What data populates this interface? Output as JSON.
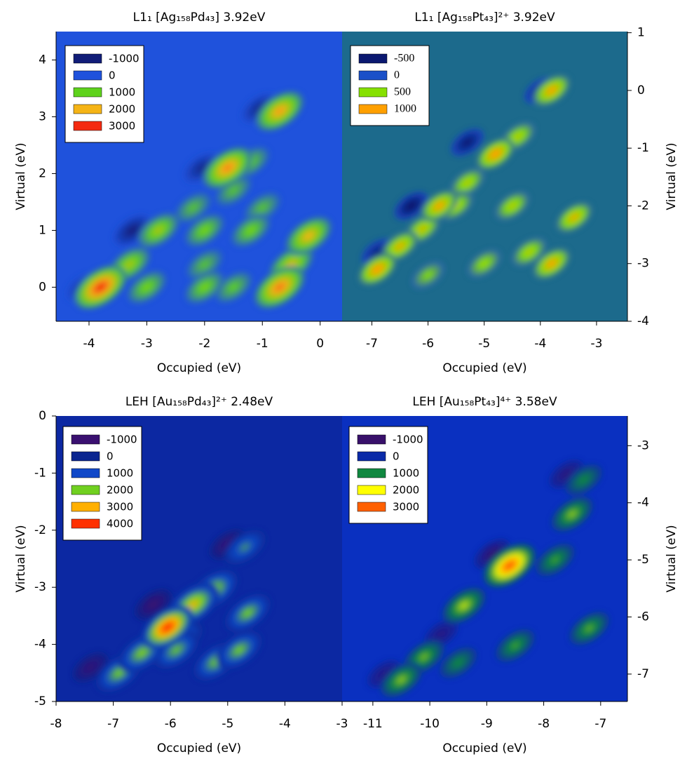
{
  "chart_data": [
    {
      "type": "contour",
      "title": "L1₁ [Ag₁₅₈Pd₄₃] 3.92eV",
      "xlabel": "Occupied (eV)",
      "ylabel": "Virtual (eV)",
      "xlim": [
        -4.57,
        0.38
      ],
      "ylim": [
        -0.6,
        4.5
      ],
      "xticks": [
        -4,
        -3,
        -2,
        -1,
        0
      ],
      "yticks": [
        0,
        1,
        2,
        3,
        4
      ],
      "y_axis_side": "left",
      "background_color": "#1f52dc",
      "levels": [
        {
          "value": -1000,
          "color": "#111d78"
        },
        {
          "value": 0,
          "color": "#1f52dc"
        },
        {
          "value": 1000,
          "color": "#5ed21c"
        },
        {
          "value": 2000,
          "color": "#f5b416"
        },
        {
          "value": 3000,
          "color": "#f42a10"
        }
      ],
      "points": [
        {
          "x": -3.8,
          "y": 0,
          "value": 3000
        },
        {
          "x": -0.7,
          "y": 0,
          "value": 2500
        },
        {
          "x": -3,
          "y": 0,
          "value": 1200
        },
        {
          "x": -2,
          "y": 0,
          "value": 1200
        },
        {
          "x": -1.5,
          "y": 0,
          "value": 1000
        },
        {
          "x": -3.3,
          "y": 0.4,
          "value": 1500
        },
        {
          "x": -0.5,
          "y": 0.4,
          "value": 1800
        },
        {
          "x": -2,
          "y": 0.4,
          "value": 900
        },
        {
          "x": -0.2,
          "y": 0.9,
          "value": 2000
        },
        {
          "x": -2.8,
          "y": 1,
          "value": 1500
        },
        {
          "x": -2,
          "y": 1,
          "value": 1200
        },
        {
          "x": -1.2,
          "y": 1,
          "value": 1200
        },
        {
          "x": -2.2,
          "y": 1.4,
          "value": 900
        },
        {
          "x": -1,
          "y": 1.4,
          "value": 900
        },
        {
          "x": -1.5,
          "y": 1.7,
          "value": 900
        },
        {
          "x": -1.6,
          "y": 2.1,
          "value": 2400
        },
        {
          "x": -1.2,
          "y": 2.2,
          "value": 1000
        },
        {
          "x": -0.7,
          "y": 3.1,
          "value": 2200
        },
        {
          "x": -3.25,
          "y": 1,
          "value": -1000
        },
        {
          "x": -4.1,
          "y": 0,
          "value": -600
        },
        {
          "x": -2.05,
          "y": 2.1,
          "value": -800
        },
        {
          "x": -1.05,
          "y": 3.15,
          "value": -800
        }
      ]
    },
    {
      "type": "contour",
      "title": "L1₁ [Ag₁₅₈Pt₄₃]²⁺ 3.92eV",
      "xlabel": "Occupied (eV)",
      "ylabel": "Virtual (eV)",
      "xlim": [
        -7.53,
        -2.45
      ],
      "ylim": [
        -4,
        1.02
      ],
      "xticks": [
        -7,
        -6,
        -5,
        -4,
        -3
      ],
      "yticks": [
        -4,
        -3,
        -2,
        -1,
        0,
        1
      ],
      "y_axis_side": "right",
      "background_color": "#1c6a8c",
      "levels": [
        {
          "value": -500,
          "color": "#0a1870"
        },
        {
          "value": 0,
          "color": "#1a50c8"
        },
        {
          "value": 500,
          "color": "#86e000"
        },
        {
          "value": 1000,
          "color": "#ffa000"
        }
      ],
      "points": [
        {
          "x": -6.9,
          "y": -3.1,
          "value": 1100
        },
        {
          "x": -6.5,
          "y": -2.7,
          "value": 900
        },
        {
          "x": -6.1,
          "y": -2.4,
          "value": 800
        },
        {
          "x": -5.8,
          "y": -2,
          "value": 1000
        },
        {
          "x": -5.3,
          "y": -1.6,
          "value": 700
        },
        {
          "x": -4.8,
          "y": -1.1,
          "value": 1100
        },
        {
          "x": -4.4,
          "y": -0.8,
          "value": 700
        },
        {
          "x": -3.8,
          "y": 0,
          "value": 1000
        },
        {
          "x": -3.4,
          "y": -2.2,
          "value": 900
        },
        {
          "x": -3.8,
          "y": -3,
          "value": 1000
        },
        {
          "x": -5.5,
          "y": -2,
          "value": 700
        },
        {
          "x": -4.5,
          "y": -2,
          "value": 700
        },
        {
          "x": -5,
          "y": -3,
          "value": 600
        },
        {
          "x": -6,
          "y": -3.2,
          "value": 500
        },
        {
          "x": -4.2,
          "y": -2.8,
          "value": 700
        },
        {
          "x": -6.3,
          "y": -2,
          "value": -600
        },
        {
          "x": -5.3,
          "y": -0.9,
          "value": -500
        },
        {
          "x": -4,
          "y": 0,
          "value": -400
        },
        {
          "x": -6.9,
          "y": -2.8,
          "value": -400
        }
      ]
    },
    {
      "type": "contour",
      "title": "LEH [Au₁₅₈Pd₄₃]²⁺ 2.48eV",
      "xlabel": "Occupied (eV)",
      "ylabel": "Virtual (eV)",
      "xlim": [
        -8,
        -3
      ],
      "ylim": [
        -5,
        0
      ],
      "xticks": [
        -8,
        -7,
        -6,
        -5,
        -4,
        -3
      ],
      "yticks": [
        -5,
        -4,
        -3,
        -2,
        -1,
        0
      ],
      "y_axis_side": "left",
      "background_color": "#0c28a2",
      "levels": [
        {
          "value": -1000,
          "color": "#3a1070"
        },
        {
          "value": 0,
          "color": "#0a2590"
        },
        {
          "value": 1000,
          "color": "#1048c8"
        },
        {
          "value": 2000,
          "color": "#70d020"
        },
        {
          "value": 3000,
          "color": "#ffb000"
        },
        {
          "value": 4000,
          "color": "#ff3000"
        }
      ],
      "points": [
        {
          "x": -6.05,
          "y": -3.7,
          "value": 4200
        },
        {
          "x": -5.6,
          "y": -3.3,
          "value": 2800
        },
        {
          "x": -5.25,
          "y": -3.05,
          "value": 2300
        },
        {
          "x": -6.5,
          "y": -4.15,
          "value": 2100
        },
        {
          "x": -5.9,
          "y": -4.1,
          "value": 1900
        },
        {
          "x": -5.2,
          "y": -4.3,
          "value": 2000
        },
        {
          "x": -6.9,
          "y": -4.5,
          "value": 2000
        },
        {
          "x": -4.65,
          "y": -3.45,
          "value": 2000
        },
        {
          "x": -4.7,
          "y": -2.3,
          "value": 1500
        },
        {
          "x": -4.8,
          "y": -4.1,
          "value": 2000
        },
        {
          "x": -5.8,
          "y": -3.9,
          "value": 1500
        },
        {
          "x": -6.3,
          "y": -3.3,
          "value": -1000
        },
        {
          "x": -5,
          "y": -2.25,
          "value": -900
        },
        {
          "x": -7.4,
          "y": -4.4,
          "value": -800
        }
      ]
    },
    {
      "type": "contour",
      "title": "LEH [Au₁₅₈Pt₄₃]⁴⁺ 3.58eV",
      "xlabel": "Occupied (eV)",
      "ylabel": "Virtual (eV)",
      "xlim": [
        -11.54,
        -6.53
      ],
      "ylim": [
        -7.48,
        -2.48
      ],
      "xticks": [
        -11,
        -10,
        -9,
        -8,
        -7
      ],
      "yticks": [
        -7,
        -6,
        -5,
        -4,
        -3
      ],
      "y_axis_side": "right",
      "background_color": "#0a30c0",
      "levels": [
        {
          "value": -1000,
          "color": "#38106a"
        },
        {
          "value": 0,
          "color": "#0a2aa8"
        },
        {
          "value": 1000,
          "color": "#108840"
        },
        {
          "value": 2000,
          "color": "#ffff00"
        },
        {
          "value": 3000,
          "color": "#ff6000"
        }
      ],
      "points": [
        {
          "x": -8.6,
          "y": -5.1,
          "value": 3200
        },
        {
          "x": -9.4,
          "y": -5.8,
          "value": 1700
        },
        {
          "x": -10.1,
          "y": -6.7,
          "value": 1400
        },
        {
          "x": -10.5,
          "y": -7.1,
          "value": 1500
        },
        {
          "x": -7.5,
          "y": -4.2,
          "value": 1500
        },
        {
          "x": -7.8,
          "y": -5,
          "value": 1200
        },
        {
          "x": -7.2,
          "y": -6.2,
          "value": 1300
        },
        {
          "x": -8.5,
          "y": -6.5,
          "value": 1200
        },
        {
          "x": -9.5,
          "y": -6.8,
          "value": 1000
        },
        {
          "x": -7.3,
          "y": -3.6,
          "value": 1000
        },
        {
          "x": -8.9,
          "y": -4.9,
          "value": -900
        },
        {
          "x": -7.6,
          "y": -3.5,
          "value": -700
        },
        {
          "x": -10.8,
          "y": -7,
          "value": -600
        },
        {
          "x": -9.8,
          "y": -6.3,
          "value": -600
        }
      ]
    }
  ]
}
